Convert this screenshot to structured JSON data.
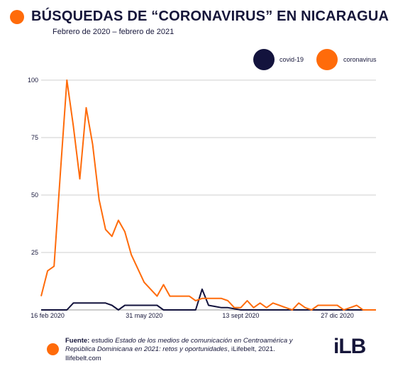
{
  "header": {
    "title": "BÚSQUEDAS DE “CORONAVIRUS” EN NICARAGUA",
    "subtitle": "Febrero de 2020 – febrero de 2021"
  },
  "colors": {
    "coronavirus": "#ff6b0a",
    "covid19": "#13133d",
    "grid": "#cfcfcf",
    "text": "#16163a"
  },
  "chart_data": {
    "type": "line",
    "ylim": [
      0,
      100
    ],
    "yticks": [
      25,
      50,
      75,
      100
    ],
    "xlim": [
      "2020-02-09",
      "2021-02-07"
    ],
    "xticks": [
      {
        "label": "16 feb 2020",
        "date": "2020-02-16"
      },
      {
        "label": "31 may 2020",
        "date": "2020-05-31"
      },
      {
        "label": "13 sept 2020",
        "date": "2020-09-13"
      },
      {
        "label": "27 dic 2020",
        "date": "2020-12-27"
      }
    ],
    "legend_position": "top-right",
    "grid": true,
    "series": [
      {
        "name": "covid-19",
        "color": "#13133d",
        "points": [
          [
            "2020-02-09",
            0
          ],
          [
            "2020-02-16",
            0
          ],
          [
            "2020-02-23",
            0
          ],
          [
            "2020-03-01",
            0
          ],
          [
            "2020-03-08",
            0
          ],
          [
            "2020-03-15",
            3
          ],
          [
            "2020-03-22",
            3
          ],
          [
            "2020-03-29",
            3
          ],
          [
            "2020-04-05",
            3
          ],
          [
            "2020-04-12",
            3
          ],
          [
            "2020-04-19",
            3
          ],
          [
            "2020-04-26",
            2
          ],
          [
            "2020-05-03",
            0
          ],
          [
            "2020-05-10",
            2
          ],
          [
            "2020-05-17",
            2
          ],
          [
            "2020-05-24",
            2
          ],
          [
            "2020-05-31",
            2
          ],
          [
            "2020-06-07",
            2
          ],
          [
            "2020-06-14",
            2
          ],
          [
            "2020-06-21",
            0
          ],
          [
            "2020-06-28",
            0
          ],
          [
            "2020-07-05",
            0
          ],
          [
            "2020-07-12",
            0
          ],
          [
            "2020-07-19",
            0
          ],
          [
            "2020-07-26",
            0
          ],
          [
            "2020-08-02",
            9
          ],
          [
            "2020-08-09",
            2
          ],
          [
            "2020-08-16",
            1.5
          ],
          [
            "2020-08-23",
            1
          ],
          [
            "2020-08-30",
            1
          ],
          [
            "2020-09-06",
            0.5
          ],
          [
            "2020-09-13",
            0
          ],
          [
            "2020-09-20",
            0
          ],
          [
            "2020-09-27",
            0
          ],
          [
            "2020-10-04",
            0
          ],
          [
            "2020-10-11",
            0
          ],
          [
            "2020-10-18",
            0
          ],
          [
            "2020-10-25",
            0
          ],
          [
            "2020-11-01",
            0
          ],
          [
            "2020-11-08",
            0
          ],
          [
            "2020-11-15",
            0
          ],
          [
            "2020-11-22",
            0
          ],
          [
            "2020-11-29",
            0
          ],
          [
            "2020-12-06",
            0
          ],
          [
            "2020-12-13",
            0
          ],
          [
            "2020-12-20",
            0
          ],
          [
            "2020-12-27",
            0
          ],
          [
            "2021-01-03",
            0
          ],
          [
            "2021-01-10",
            0
          ],
          [
            "2021-01-17",
            0
          ],
          [
            "2021-01-24",
            0
          ],
          [
            "2021-01-31",
            0
          ],
          [
            "2021-02-07",
            0
          ]
        ]
      },
      {
        "name": "coronavirus",
        "color": "#ff6b0a",
        "points": [
          [
            "2020-02-09",
            6
          ],
          [
            "2020-02-16",
            17
          ],
          [
            "2020-02-23",
            19
          ],
          [
            "2020-03-01",
            60
          ],
          [
            "2020-03-08",
            100
          ],
          [
            "2020-03-15",
            80
          ],
          [
            "2020-03-22",
            57
          ],
          [
            "2020-03-29",
            88
          ],
          [
            "2020-04-05",
            72
          ],
          [
            "2020-04-12",
            48
          ],
          [
            "2020-04-19",
            35
          ],
          [
            "2020-04-26",
            32
          ],
          [
            "2020-05-03",
            39
          ],
          [
            "2020-05-10",
            34
          ],
          [
            "2020-05-17",
            24
          ],
          [
            "2020-05-24",
            18
          ],
          [
            "2020-05-31",
            12
          ],
          [
            "2020-06-07",
            9
          ],
          [
            "2020-06-14",
            6
          ],
          [
            "2020-06-21",
            11
          ],
          [
            "2020-06-28",
            6
          ],
          [
            "2020-07-05",
            6
          ],
          [
            "2020-07-12",
            6
          ],
          [
            "2020-07-19",
            6
          ],
          [
            "2020-07-26",
            4
          ],
          [
            "2020-08-02",
            5
          ],
          [
            "2020-08-09",
            5
          ],
          [
            "2020-08-16",
            5
          ],
          [
            "2020-08-23",
            5
          ],
          [
            "2020-08-30",
            4
          ],
          [
            "2020-09-06",
            1
          ],
          [
            "2020-09-13",
            1
          ],
          [
            "2020-09-20",
            4
          ],
          [
            "2020-09-27",
            1
          ],
          [
            "2020-10-04",
            3
          ],
          [
            "2020-10-11",
            1
          ],
          [
            "2020-10-18",
            3
          ],
          [
            "2020-10-25",
            2
          ],
          [
            "2020-11-01",
            1
          ],
          [
            "2020-11-08",
            0
          ],
          [
            "2020-11-15",
            3
          ],
          [
            "2020-11-22",
            1
          ],
          [
            "2020-11-29",
            0
          ],
          [
            "2020-12-06",
            2
          ],
          [
            "2020-12-13",
            2
          ],
          [
            "2020-12-20",
            2
          ],
          [
            "2020-12-27",
            2
          ],
          [
            "2021-01-03",
            0
          ],
          [
            "2021-01-10",
            1
          ],
          [
            "2021-01-17",
            2
          ],
          [
            "2021-01-24",
            0
          ],
          [
            "2021-01-31",
            0
          ],
          [
            "2021-02-07",
            0
          ]
        ]
      }
    ]
  },
  "footer": {
    "source_label": "Fuente:",
    "source_pre": " estudio ",
    "source_italic": "Estado de los medios de comunicación en Centroamérica y República Dominicana en 2021: retos y oportunidades",
    "source_post": ", iLifebelt, 2021.",
    "website": "Ilifebelt.com",
    "logo_text": "iLB"
  }
}
